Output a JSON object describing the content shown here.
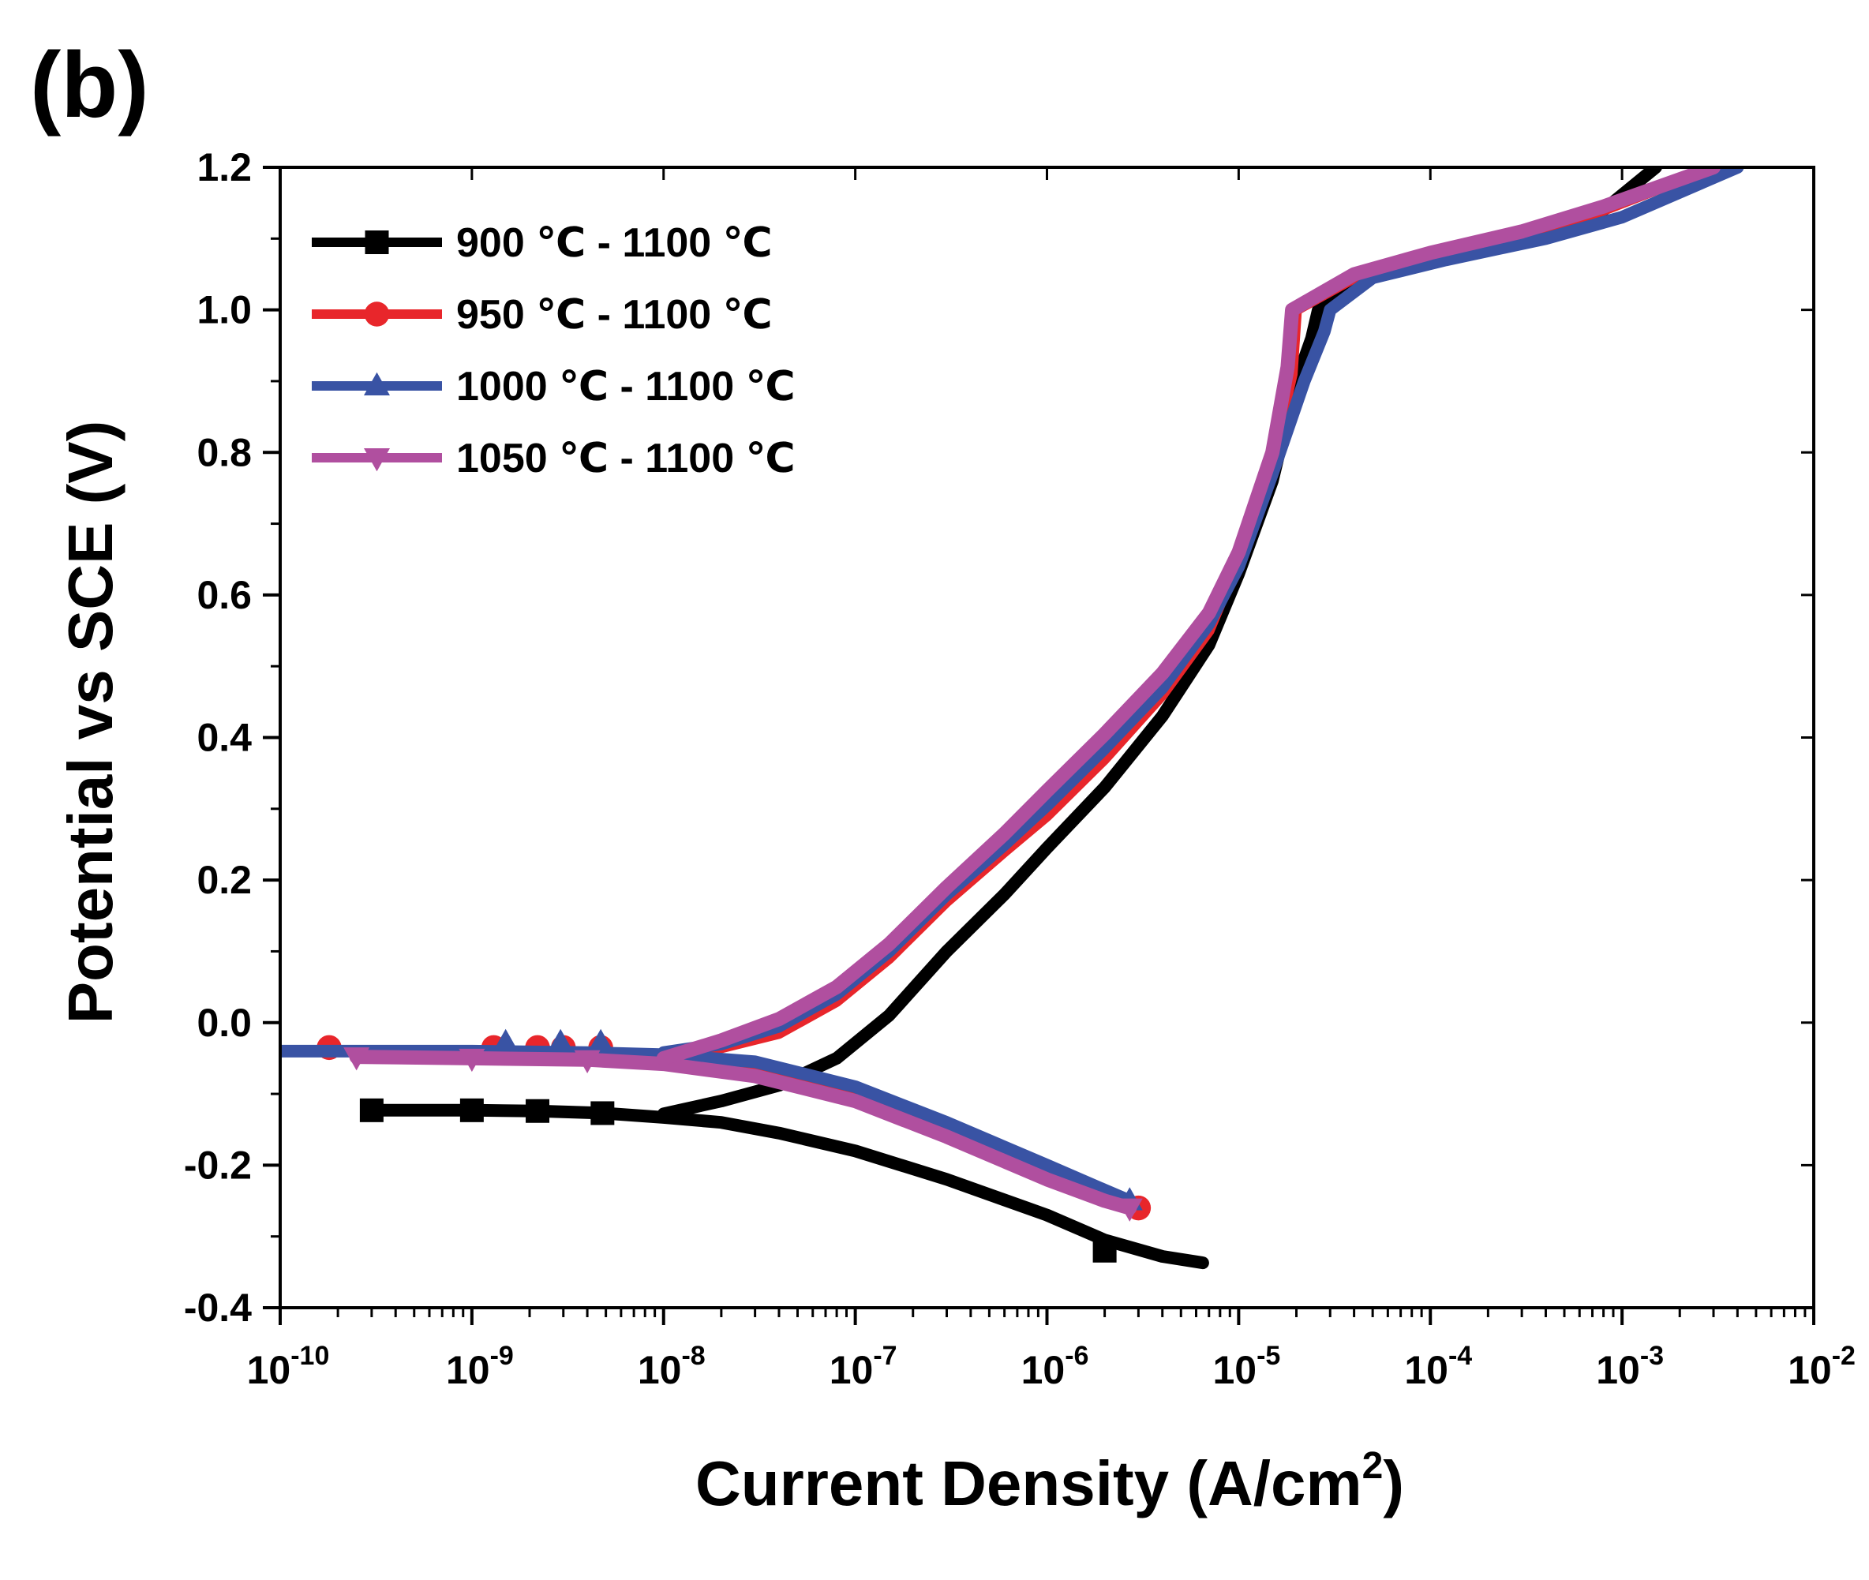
{
  "panel_label": "(b)",
  "chart_data": {
    "type": "line",
    "x_scale": "log",
    "xlabel": "Current Density (A/cm",
    "xlabel_sup": "2",
    "xlabel_suffix": ")",
    "ylabel": "Potential vs SCE (V)",
    "xlim": [
      1e-10,
      0.01
    ],
    "ylim": [
      -0.4,
      1.2
    ],
    "x_ticks": [
      {
        "base": "10",
        "exp": "-10",
        "value": 1e-10
      },
      {
        "base": "10",
        "exp": "-9",
        "value": 1e-09
      },
      {
        "base": "10",
        "exp": "-8",
        "value": 1e-08
      },
      {
        "base": "10",
        "exp": "-7",
        "value": 1e-07
      },
      {
        "base": "10",
        "exp": "-6",
        "value": 1e-06
      },
      {
        "base": "10",
        "exp": "-5",
        "value": 1e-05
      },
      {
        "base": "10",
        "exp": "-4",
        "value": 0.0001
      },
      {
        "base": "10",
        "exp": "-3",
        "value": 0.001
      },
      {
        "base": "10",
        "exp": "-2",
        "value": 0.01
      }
    ],
    "y_ticks": [
      {
        "label": "-0.4",
        "value": -0.4
      },
      {
        "label": "-0.2",
        "value": -0.2
      },
      {
        "label": "0.0",
        "value": 0.0
      },
      {
        "label": "0.2",
        "value": 0.2
      },
      {
        "label": "0.4",
        "value": 0.4
      },
      {
        "label": "0.6",
        "value": 0.6
      },
      {
        "label": "0.8",
        "value": 0.8
      },
      {
        "label": "1.0",
        "value": 1.0
      },
      {
        "label": "1.2",
        "value": 1.2
      }
    ],
    "grid": false,
    "legend_position": "top-left",
    "series": [
      {
        "name": "900 ℃ - 1100 ℃",
        "color": "#000000",
        "marker": "square",
        "width": 16,
        "cathodic": [
          [
            3e-10,
            -0.123
          ],
          [
            1e-09,
            -0.123
          ],
          [
            2.2e-09,
            -0.124
          ],
          [
            4.8e-09,
            -0.127
          ],
          [
            1e-08,
            -0.133
          ],
          [
            2e-08,
            -0.14
          ],
          [
            4e-08,
            -0.155
          ],
          [
            1e-07,
            -0.18
          ],
          [
            3e-07,
            -0.22
          ],
          [
            1e-06,
            -0.27
          ],
          [
            2e-06,
            -0.305
          ],
          [
            4e-06,
            -0.328
          ],
          [
            6.5e-06,
            -0.337
          ]
        ],
        "anodic": [
          [
            1e-08,
            -0.128
          ],
          [
            2e-08,
            -0.11
          ],
          [
            4e-08,
            -0.088
          ],
          [
            8e-08,
            -0.05
          ],
          [
            1.5e-07,
            0.01
          ],
          [
            3e-07,
            0.1
          ],
          [
            6e-07,
            0.18
          ],
          [
            1e-06,
            0.245
          ],
          [
            2e-06,
            0.33
          ],
          [
            4e-06,
            0.43
          ],
          [
            7e-06,
            0.53
          ],
          [
            1e-05,
            0.63
          ],
          [
            1.5e-05,
            0.76
          ],
          [
            2e-05,
            0.9
          ],
          [
            2.4e-05,
            0.96
          ],
          [
            2.6e-05,
            1.0
          ],
          [
            4e-05,
            1.045
          ],
          [
            0.0001,
            1.075
          ],
          [
            0.0003,
            1.105
          ],
          [
            0.0008,
            1.14
          ],
          [
            0.0015,
            1.2
          ]
        ],
        "markers": [
          [
            3e-10,
            -0.123
          ],
          [
            1e-09,
            -0.123
          ],
          [
            2.2e-09,
            -0.124
          ],
          [
            4.8e-09,
            -0.127
          ],
          [
            2e-06,
            -0.32
          ]
        ]
      },
      {
        "name": "950 ℃ - 1100 ℃",
        "color": "#e8262b",
        "marker": "circle",
        "width": 14,
        "cathodic": [
          [
            1.8e-10,
            -0.04
          ],
          [
            1e-09,
            -0.04
          ],
          [
            4e-09,
            -0.042
          ],
          [
            1e-08,
            -0.045
          ],
          [
            3e-08,
            -0.06
          ],
          [
            1e-07,
            -0.1
          ],
          [
            3e-07,
            -0.15
          ],
          [
            1e-06,
            -0.21
          ],
          [
            2e-06,
            -0.245
          ],
          [
            3e-06,
            -0.26
          ]
        ],
        "anodic": [
          [
            1e-08,
            -0.042
          ],
          [
            2e-08,
            -0.035
          ],
          [
            4e-08,
            -0.015
          ],
          [
            8e-08,
            0.03
          ],
          [
            1.5e-07,
            0.09
          ],
          [
            3e-07,
            0.17
          ],
          [
            6e-07,
            0.24
          ],
          [
            1e-06,
            0.29
          ],
          [
            2e-06,
            0.37
          ],
          [
            4e-06,
            0.46
          ],
          [
            7e-06,
            0.55
          ],
          [
            1e-05,
            0.65
          ],
          [
            1.5e-05,
            0.79
          ],
          [
            1.9e-05,
            0.91
          ],
          [
            2e-05,
            1.0
          ],
          [
            4e-05,
            1.045
          ],
          [
            0.0001,
            1.075
          ],
          [
            0.0003,
            1.105
          ],
          [
            0.0008,
            1.14
          ],
          [
            0.003,
            1.2
          ]
        ],
        "markers": [
          [
            1.8e-10,
            -0.035
          ],
          [
            1.3e-09,
            -0.035
          ],
          [
            2.2e-09,
            -0.035
          ],
          [
            3e-09,
            -0.035
          ],
          [
            4.7e-09,
            -0.035
          ],
          [
            3e-06,
            -0.26
          ]
        ]
      },
      {
        "name": "1000 ℃ - 1100 ℃",
        "color": "#3953a4",
        "marker": "triangle-up",
        "width": 16,
        "cathodic": [
          [
            1e-10,
            -0.04
          ],
          [
            1e-09,
            -0.04
          ],
          [
            4e-09,
            -0.042
          ],
          [
            1e-08,
            -0.045
          ],
          [
            3e-08,
            -0.055
          ],
          [
            1e-07,
            -0.09
          ],
          [
            3e-07,
            -0.14
          ],
          [
            1e-06,
            -0.2
          ],
          [
            2e-06,
            -0.235
          ],
          [
            2.7e-06,
            -0.25
          ]
        ],
        "anodic": [
          [
            1e-08,
            -0.042
          ],
          [
            2e-08,
            -0.03
          ],
          [
            4e-08,
            -0.005
          ],
          [
            8e-08,
            0.04
          ],
          [
            1.5e-07,
            0.1
          ],
          [
            3e-07,
            0.18
          ],
          [
            6e-07,
            0.25
          ],
          [
            1e-06,
            0.305
          ],
          [
            2e-06,
            0.385
          ],
          [
            4e-06,
            0.47
          ],
          [
            7e-06,
            0.56
          ],
          [
            1e-05,
            0.64
          ],
          [
            1.5e-05,
            0.77
          ],
          [
            2.2e-05,
            0.9
          ],
          [
            2.8e-05,
            0.97
          ],
          [
            3e-05,
            1.0
          ],
          [
            5e-05,
            1.045
          ],
          [
            0.00012,
            1.07
          ],
          [
            0.0004,
            1.1
          ],
          [
            0.001,
            1.13
          ],
          [
            0.004,
            1.2
          ]
        ],
        "markers": [
          [
            1.5e-09,
            -0.028
          ],
          [
            2.9e-09,
            -0.028
          ],
          [
            4.7e-09,
            -0.028
          ],
          [
            2.7e-06,
            -0.25
          ]
        ]
      },
      {
        "name": "1050 ℃ - 1100 ℃",
        "color": "#b04f9f",
        "marker": "triangle-down",
        "width": 18,
        "cathodic": [
          [
            2.5e-10,
            -0.048
          ],
          [
            1e-09,
            -0.05
          ],
          [
            4e-09,
            -0.052
          ],
          [
            1e-08,
            -0.058
          ],
          [
            3e-08,
            -0.075
          ],
          [
            1e-07,
            -0.11
          ],
          [
            3e-07,
            -0.16
          ],
          [
            1e-06,
            -0.22
          ],
          [
            2e-06,
            -0.25
          ],
          [
            2.7e-06,
            -0.26
          ]
        ],
        "anodic": [
          [
            1e-08,
            -0.05
          ],
          [
            2e-08,
            -0.025
          ],
          [
            4e-08,
            0.005
          ],
          [
            8e-08,
            0.05
          ],
          [
            1.5e-07,
            0.11
          ],
          [
            3e-07,
            0.19
          ],
          [
            6e-07,
            0.265
          ],
          [
            1e-06,
            0.325
          ],
          [
            2e-06,
            0.405
          ],
          [
            4e-06,
            0.49
          ],
          [
            7e-06,
            0.575
          ],
          [
            1e-05,
            0.66
          ],
          [
            1.5e-05,
            0.8
          ],
          [
            1.8e-05,
            0.92
          ],
          [
            1.9e-05,
            1.0
          ],
          [
            4e-05,
            1.05
          ],
          [
            0.0001,
            1.08
          ],
          [
            0.0003,
            1.11
          ],
          [
            0.0008,
            1.145
          ],
          [
            0.003,
            1.2
          ]
        ],
        "markers": [
          [
            2.5e-10,
            -0.048
          ],
          [
            1e-09,
            -0.05
          ],
          [
            4e-09,
            -0.052
          ],
          [
            2.7e-06,
            -0.26
          ]
        ]
      }
    ]
  }
}
